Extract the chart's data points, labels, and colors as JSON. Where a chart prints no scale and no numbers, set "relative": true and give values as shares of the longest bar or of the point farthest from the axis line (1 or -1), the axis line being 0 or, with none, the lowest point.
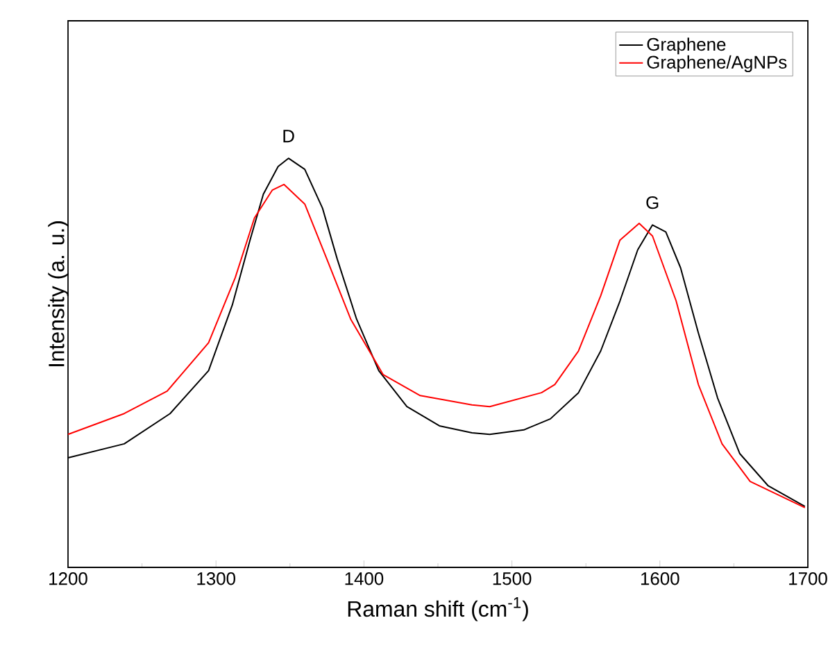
{
  "chart_data": {
    "type": "line",
    "xlabel": "Raman shift (cm$^{-1}$)",
    "ylabel": "Intensity (a. u.)",
    "relative": true,
    "xlim": [
      1200,
      1700
    ],
    "xticks": [
      1200,
      1300,
      1400,
      1500,
      1600,
      1700
    ],
    "tick_labels": "x",
    "legend": "top right",
    "line_style": "solid",
    "annotations": [
      "D",
      "G"
    ],
    "series": [
      {
        "name": "Graphene",
        "color": "#000000",
        "x": [
          1200,
          1238,
          1269,
          1295,
          1311,
          1323,
          1332,
          1342,
          1349,
          1360,
          1372,
          1382,
          1395,
          1410,
          1429,
          1451,
          1473,
          1485,
          1508,
          1526,
          1545,
          1560,
          1573,
          1585,
          1595,
          1604,
          1614,
          1626,
          1639,
          1654,
          1673,
          1698
        ],
        "values": [
          0.268,
          0.302,
          0.376,
          0.481,
          0.641,
          0.8,
          0.912,
          0.98,
          1,
          0.973,
          0.878,
          0.753,
          0.607,
          0.481,
          0.393,
          0.346,
          0.329,
          0.325,
          0.336,
          0.363,
          0.427,
          0.529,
          0.651,
          0.776,
          0.837,
          0.82,
          0.732,
          0.573,
          0.414,
          0.278,
          0.2,
          0.149
        ]
      },
      {
        "name": "Graphene/AgNPs",
        "color": "#ff0000",
        "x": [
          1200,
          1238,
          1267,
          1295,
          1313,
          1326,
          1338,
          1346,
          1360,
          1375,
          1391,
          1413,
          1438,
          1473,
          1485,
          1520,
          1529,
          1545,
          1560,
          1573,
          1586,
          1595,
          1611,
          1626,
          1642,
          1661,
          1698
        ],
        "values": [
          0.325,
          0.376,
          0.431,
          0.549,
          0.708,
          0.854,
          0.922,
          0.936,
          0.888,
          0.753,
          0.607,
          0.471,
          0.42,
          0.397,
          0.393,
          0.427,
          0.447,
          0.529,
          0.664,
          0.8,
          0.841,
          0.81,
          0.651,
          0.447,
          0.302,
          0.21,
          0.146
        ]
      }
    ]
  }
}
